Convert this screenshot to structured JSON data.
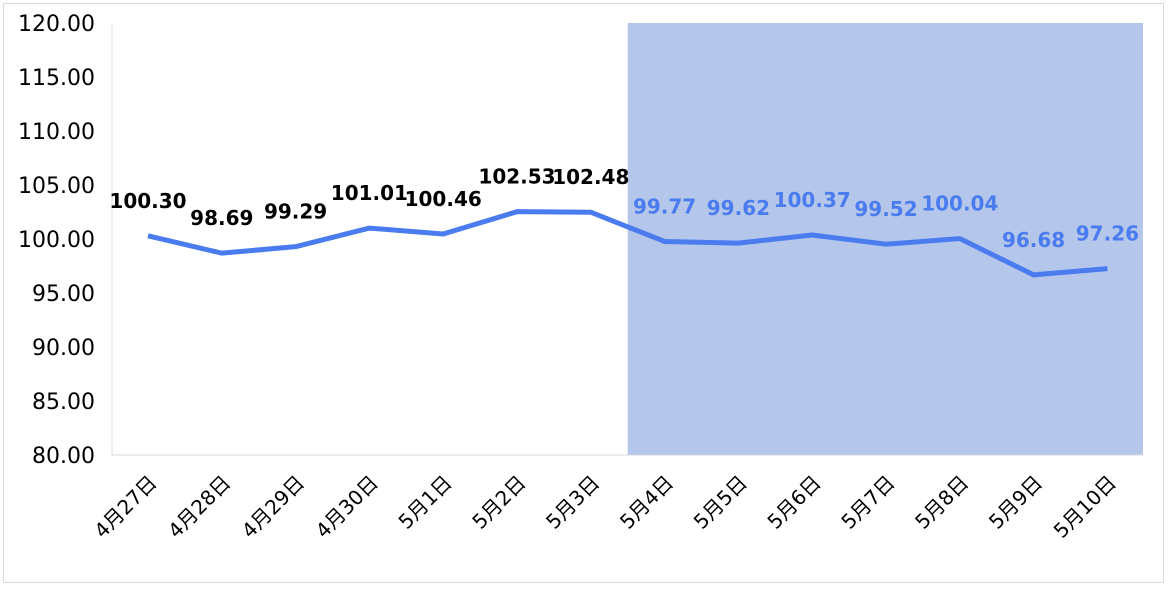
{
  "chart_data": {
    "type": "line",
    "categories": [
      "4月27日",
      "4月28日",
      "4月29日",
      "4月30日",
      "5月1日",
      "5月2日",
      "5月3日",
      "5月4日",
      "5月5日",
      "5月6日",
      "5月7日",
      "5月8日",
      "5月9日",
      "5月10日"
    ],
    "values": [
      100.3,
      98.69,
      99.29,
      101.01,
      100.46,
      102.53,
      102.48,
      99.77,
      99.62,
      100.37,
      99.52,
      100.04,
      96.68,
      97.26
    ],
    "data_labels": [
      "100.30",
      "98.69",
      "99.29",
      "101.01",
      "100.46",
      "102.53",
      "102.48",
      "99.77",
      "99.62",
      "100.37",
      "99.52",
      "100.04",
      "96.68",
      "97.26"
    ],
    "y_tick_labels": [
      "80.00",
      "85.00",
      "90.00",
      "95.00",
      "100.00",
      "105.00",
      "110.00",
      "115.00",
      "120.00"
    ],
    "ylim": [
      80,
      120
    ],
    "title": "",
    "xlabel": "",
    "ylabel": "",
    "grid": false,
    "forecast_region_start_index": 7,
    "colors": {
      "line": "#4a7cf0",
      "label_actual": "#000000",
      "label_forecast": "#4a7cf0",
      "forecast_shade": "#b4c6ea",
      "drop_line": "#4a7cf0"
    }
  }
}
